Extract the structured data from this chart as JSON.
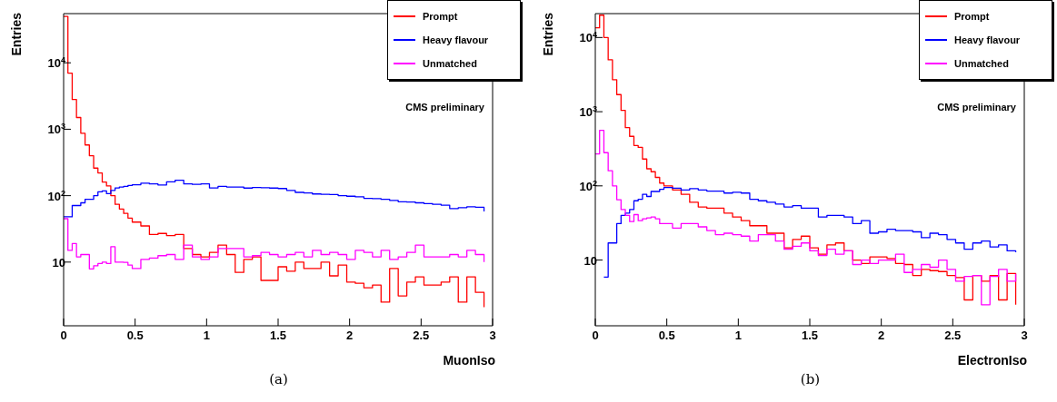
{
  "chart_data": [
    {
      "type": "step",
      "xlabel": "MuonIso",
      "ylabel": "Entries",
      "annotations": [
        "CMS preliminary",
        "(a)"
      ],
      "log": true,
      "legend": "top right",
      "xlim": [
        0,
        3
      ],
      "xticks": [
        0,
        0.5,
        1,
        1.5,
        2,
        2.5,
        3
      ],
      "ylim": [
        1.1,
        55000
      ],
      "yticks": [
        10,
        {
          "value": 100,
          "label": "10$^{2}$"
        },
        {
          "value": 1000,
          "label": "10$^{3}$"
        },
        {
          "value": 10000,
          "label": "10$^{4}$"
        }
      ],
      "series": [
        {
          "name": "Prompt",
          "color": "#ff0000",
          "x": [
            0,
            0.03,
            0.06,
            0.09,
            0.12,
            0.15,
            0.18,
            0.21,
            0.24,
            0.27,
            0.3,
            0.33,
            0.36,
            0.39,
            0.42,
            0.45,
            0.48,
            0.54,
            0.6,
            0.66,
            0.72,
            0.78,
            0.84,
            0.9,
            0.96,
            1.02,
            1.08,
            1.14,
            1.2,
            1.26,
            1.32,
            1.38,
            1.44,
            1.5,
            1.56,
            1.62,
            1.68,
            1.74,
            1.8,
            1.86,
            1.92,
            1.98,
            2.04,
            2.1,
            2.16,
            2.22,
            2.28,
            2.34,
            2.4,
            2.46,
            2.52,
            2.58,
            2.64,
            2.7,
            2.76,
            2.82,
            2.88,
            2.94
          ],
          "values": [
            50000,
            7000,
            2800,
            1500,
            870,
            580,
            400,
            260,
            220,
            160,
            140,
            100,
            74,
            63,
            54,
            46,
            40,
            35,
            26,
            27,
            25,
            26,
            16,
            13,
            12,
            14,
            18,
            13,
            7,
            11,
            12,
            5.3,
            5.3,
            8.5,
            7.3,
            10,
            8,
            8,
            10,
            6.2,
            9,
            5,
            4.8,
            4.1,
            4.5,
            2.5,
            8,
            3.1,
            5,
            6,
            4.5,
            4.5,
            5,
            6,
            2.5,
            6,
            3.5,
            2.1
          ]
        },
        {
          "name": "Heavy flavour",
          "color": "#0000ff",
          "x": [
            0,
            0.03,
            0.06,
            0.09,
            0.12,
            0.15,
            0.18,
            0.21,
            0.24,
            0.27,
            0.3,
            0.33,
            0.36,
            0.39,
            0.42,
            0.45,
            0.48,
            0.54,
            0.6,
            0.66,
            0.72,
            0.78,
            0.84,
            0.9,
            0.96,
            1.02,
            1.08,
            1.14,
            1.2,
            1.26,
            1.32,
            1.38,
            1.44,
            1.5,
            1.56,
            1.62,
            1.68,
            1.74,
            1.8,
            1.86,
            1.92,
            1.98,
            2.04,
            2.1,
            2.16,
            2.22,
            2.28,
            2.34,
            2.4,
            2.46,
            2.52,
            2.58,
            2.64,
            2.7,
            2.76,
            2.82,
            2.88,
            2.94
          ],
          "values": [
            48,
            48,
            71,
            71,
            78,
            88,
            88,
            100,
            114,
            118,
            107,
            120,
            131,
            135,
            138,
            142,
            146,
            154,
            150,
            145,
            162,
            171,
            150,
            148,
            150,
            131,
            138,
            135,
            135,
            130,
            133,
            132,
            130,
            128,
            120,
            112,
            110,
            106,
            105,
            104,
            100,
            98,
            96,
            91,
            90,
            88,
            85,
            81,
            80,
            78,
            76,
            74,
            72,
            64,
            66,
            68,
            67,
            58
          ]
        },
        {
          "name": "Unmatched",
          "color": "#ff00ff",
          "x": [
            0,
            0.03,
            0.06,
            0.09,
            0.12,
            0.15,
            0.18,
            0.21,
            0.24,
            0.27,
            0.3,
            0.33,
            0.36,
            0.39,
            0.42,
            0.45,
            0.48,
            0.54,
            0.6,
            0.66,
            0.72,
            0.78,
            0.84,
            0.9,
            0.96,
            1.02,
            1.08,
            1.14,
            1.2,
            1.26,
            1.32,
            1.38,
            1.44,
            1.5,
            1.56,
            1.62,
            1.68,
            1.74,
            1.8,
            1.86,
            1.92,
            1.98,
            2.04,
            2.1,
            2.16,
            2.22,
            2.28,
            2.34,
            2.4,
            2.46,
            2.52,
            2.58,
            2.64,
            2.7,
            2.76,
            2.82,
            2.88,
            2.94
          ],
          "values": [
            45,
            15,
            19,
            12,
            13,
            13,
            7.9,
            8.8,
            9.5,
            10,
            9.5,
            17,
            10,
            10,
            9.9,
            9,
            8,
            11,
            11.5,
            12.5,
            13,
            11,
            18,
            12,
            11,
            12,
            16,
            16,
            16,
            12,
            12.5,
            14,
            13,
            12,
            13,
            14,
            12,
            15,
            13,
            14,
            13,
            11,
            15,
            14,
            12,
            15,
            11,
            12,
            14,
            18,
            12,
            12,
            12,
            13,
            12,
            15,
            13,
            10
          ]
        }
      ]
    },
    {
      "type": "step",
      "xlabel": "ElectronIso",
      "ylabel": "Entries",
      "annotations": [
        "CMS preliminary",
        "(b)"
      ],
      "log": true,
      "legend": "top right",
      "xlim": [
        0,
        3
      ],
      "xticks": [
        0,
        0.5,
        1,
        1.5,
        2,
        2.5,
        3
      ],
      "ylim": [
        1.3,
        21000
      ],
      "yticks": [
        10,
        {
          "value": 100,
          "label": "10$^{2}$"
        },
        {
          "value": 1000,
          "label": "10$^{3}$"
        },
        {
          "value": 10000,
          "label": "10$^{4}$"
        }
      ],
      "series": [
        {
          "name": "Prompt",
          "color": "#ff0000",
          "x": [
            0,
            0.03,
            0.06,
            0.09,
            0.12,
            0.15,
            0.18,
            0.21,
            0.24,
            0.27,
            0.3,
            0.33,
            0.36,
            0.39,
            0.42,
            0.45,
            0.48,
            0.54,
            0.6,
            0.66,
            0.72,
            0.78,
            0.84,
            0.9,
            0.96,
            1.02,
            1.08,
            1.14,
            1.2,
            1.26,
            1.32,
            1.38,
            1.44,
            1.5,
            1.56,
            1.62,
            1.68,
            1.74,
            1.8,
            1.86,
            1.92,
            1.98,
            2.04,
            2.1,
            2.16,
            2.22,
            2.28,
            2.34,
            2.4,
            2.46,
            2.52,
            2.58,
            2.64,
            2.7,
            2.76,
            2.82,
            2.88,
            2.94
          ],
          "values": [
            13500,
            20000,
            10000,
            5000,
            2700,
            1700,
            1040,
            610,
            465,
            350,
            330,
            230,
            170,
            155,
            130,
            109,
            100,
            88,
            77,
            60,
            52,
            50,
            50,
            43,
            38,
            34,
            29,
            29,
            23,
            23,
            14.6,
            19,
            21,
            14.6,
            12,
            16,
            17,
            13.3,
            10,
            9,
            11,
            11,
            10.5,
            9,
            8.7,
            6.2,
            7.5,
            7.2,
            7,
            6.2,
            5.8,
            2.9,
            6.2,
            5.2,
            6.2,
            2.9,
            6.6,
            2.5
          ]
        },
        {
          "name": "Heavy flavour",
          "color": "#0000ff",
          "x": [
            0.06,
            0.09,
            0.12,
            0.15,
            0.18,
            0.21,
            0.24,
            0.27,
            0.3,
            0.33,
            0.36,
            0.39,
            0.42,
            0.45,
            0.48,
            0.54,
            0.6,
            0.66,
            0.72,
            0.78,
            0.84,
            0.9,
            0.96,
            1.02,
            1.08,
            1.14,
            1.2,
            1.26,
            1.32,
            1.38,
            1.44,
            1.5,
            1.56,
            1.62,
            1.68,
            1.74,
            1.8,
            1.86,
            1.92,
            1.98,
            2.04,
            2.1,
            2.16,
            2.22,
            2.28,
            2.34,
            2.4,
            2.46,
            2.52,
            2.58,
            2.64,
            2.7,
            2.76,
            2.82,
            2.88,
            2.94
          ],
          "values": [
            5.9,
            17,
            17,
            31,
            40,
            43,
            48,
            63,
            66,
            77,
            72,
            84,
            84,
            90,
            95,
            93,
            88,
            92,
            88,
            85,
            85,
            80,
            82,
            80,
            66,
            63,
            60,
            57,
            52,
            54,
            50,
            50,
            38,
            40,
            40,
            38,
            31,
            34,
            23,
            24,
            26,
            25,
            25,
            24,
            20,
            23,
            22,
            19,
            17,
            14,
            17,
            18,
            15,
            16,
            13.3,
            12.7
          ]
        },
        {
          "name": "Unmatched",
          "color": "#ff00ff",
          "x": [
            0,
            0.03,
            0.06,
            0.09,
            0.12,
            0.15,
            0.18,
            0.21,
            0.24,
            0.27,
            0.3,
            0.33,
            0.36,
            0.39,
            0.42,
            0.45,
            0.48,
            0.54,
            0.6,
            0.66,
            0.72,
            0.78,
            0.84,
            0.9,
            0.96,
            1.02,
            1.08,
            1.14,
            1.2,
            1.26,
            1.32,
            1.38,
            1.44,
            1.5,
            1.56,
            1.62,
            1.68,
            1.74,
            1.8,
            1.86,
            1.92,
            1.98,
            2.04,
            2.1,
            2.16,
            2.22,
            2.28,
            2.34,
            2.4,
            2.46,
            2.52,
            2.58,
            2.64,
            2.7,
            2.76,
            2.82,
            2.88,
            2.94
          ],
          "values": [
            270,
            560,
            280,
            160,
            100,
            65,
            48,
            40,
            33,
            41,
            34,
            36,
            37,
            38,
            36,
            31,
            31,
            27,
            31,
            31,
            28,
            25,
            22,
            23,
            22,
            21,
            18,
            22,
            22,
            18,
            14,
            15.3,
            17,
            13.3,
            11.5,
            14,
            12,
            13.3,
            8.7,
            10,
            9,
            10,
            10,
            12,
            6.8,
            7.5,
            8.7,
            8,
            10,
            7.5,
            5.2,
            6,
            6.2,
            2.5,
            6,
            7.5,
            5.2,
            6.5
          ]
        }
      ]
    }
  ]
}
